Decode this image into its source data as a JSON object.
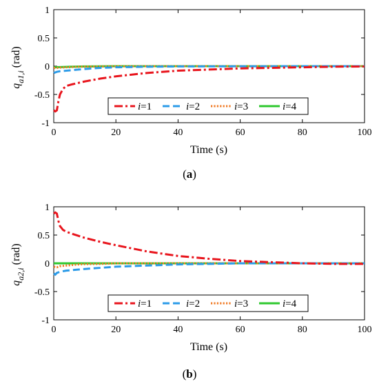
{
  "chart_data": [
    {
      "type": "line",
      "panel_label": "a",
      "ylabel_main": "q",
      "ylabel_sub": "a1,i",
      "ylabel_unit": "(rad)",
      "xlabel": "Time (s)",
      "xlim": [
        0,
        100
      ],
      "ylim": [
        -1,
        1
      ],
      "xticks": [
        "0",
        "20",
        "40",
        "60",
        "80",
        "100"
      ],
      "yticks": [
        "1",
        "0.5",
        "0",
        "-0.5",
        "-1"
      ],
      "legend_position": "bottom-center",
      "legend": [
        {
          "label": "i=1",
          "color": "#e8141c",
          "style": "dashdot"
        },
        {
          "label": "i=2",
          "color": "#2b9be8",
          "style": "dashed"
        },
        {
          "label": "i=3",
          "color": "#f07a24",
          "style": "dotted"
        },
        {
          "label": "i=4",
          "color": "#2ec82e",
          "style": "solid"
        }
      ],
      "series": [
        {
          "x": [
            0,
            0.5,
            1,
            1.5,
            2,
            3,
            4,
            6,
            10,
            15,
            20,
            30,
            40,
            50,
            60,
            70,
            80,
            90,
            100
          ],
          "y": [
            -0.78,
            -0.8,
            -0.78,
            -0.62,
            -0.5,
            -0.4,
            -0.35,
            -0.32,
            -0.27,
            -0.22,
            -0.18,
            -0.12,
            -0.08,
            -0.06,
            -0.04,
            -0.03,
            -0.02,
            -0.01,
            -0.005
          ]
        },
        {
          "x": [
            0,
            1,
            2,
            4,
            6,
            8,
            10,
            15,
            20,
            30,
            40,
            60,
            80,
            100
          ],
          "y": [
            -0.12,
            -0.1,
            -0.09,
            -0.08,
            -0.07,
            -0.06,
            -0.05,
            -0.03,
            -0.02,
            -0.01,
            -0.005,
            -0.002,
            0,
            0
          ]
        },
        {
          "x": [
            0,
            1,
            2,
            4,
            8,
            15,
            30,
            60,
            100
          ],
          "y": [
            -0.03,
            -0.03,
            -0.025,
            -0.02,
            -0.01,
            -0.005,
            0,
            0,
            0
          ]
        },
        {
          "x": [
            0,
            5,
            10,
            20,
            40,
            60,
            80,
            100
          ],
          "y": [
            -0.02,
            -0.01,
            -0.005,
            0,
            0,
            0,
            0,
            0
          ]
        }
      ]
    },
    {
      "type": "line",
      "panel_label": "b",
      "ylabel_main": "q",
      "ylabel_sub": "a2,i",
      "ylabel_unit": "(rad)",
      "xlabel": "Time (s)",
      "xlim": [
        0,
        100
      ],
      "ylim": [
        -1,
        1
      ],
      "xticks": [
        "0",
        "20",
        "40",
        "60",
        "80",
        "100"
      ],
      "yticks": [
        "1",
        "0.5",
        "0",
        "-0.5",
        "-1"
      ],
      "legend_position": "bottom-center",
      "legend": [
        {
          "label": "i=1",
          "color": "#e8141c",
          "style": "dashdot"
        },
        {
          "label": "i=2",
          "color": "#2b9be8",
          "style": "dashed"
        },
        {
          "label": "i=3",
          "color": "#f07a24",
          "style": "dotted"
        },
        {
          "label": "i=4",
          "color": "#2ec82e",
          "style": "solid"
        }
      ],
      "series": [
        {
          "x": [
            0,
            0.5,
            1,
            1.5,
            2,
            3,
            4,
            6,
            10,
            15,
            20,
            30,
            40,
            50,
            60,
            70,
            80,
            90,
            100
          ],
          "y": [
            0.88,
            0.9,
            0.88,
            0.75,
            0.66,
            0.59,
            0.56,
            0.52,
            0.45,
            0.38,
            0.32,
            0.21,
            0.13,
            0.08,
            0.04,
            0.02,
            0,
            -0.01,
            -0.01
          ]
        },
        {
          "x": [
            0,
            0.5,
            1,
            2,
            4,
            6,
            10,
            15,
            20,
            30,
            40,
            50,
            60,
            80,
            100
          ],
          "y": [
            -0.18,
            -0.2,
            -0.17,
            -0.15,
            -0.13,
            -0.12,
            -0.1,
            -0.08,
            -0.06,
            -0.04,
            -0.02,
            -0.01,
            0,
            0,
            0
          ]
        },
        {
          "x": [
            0,
            1,
            2,
            4,
            6,
            8,
            10,
            15,
            20,
            40,
            60,
            100
          ],
          "y": [
            -0.06,
            -0.07,
            -0.05,
            -0.04,
            -0.03,
            -0.02,
            -0.015,
            -0.01,
            0,
            0,
            0,
            0
          ]
        },
        {
          "x": [
            0,
            5,
            10,
            20,
            40,
            60,
            80,
            100
          ],
          "y": [
            0,
            0,
            0,
            0,
            0,
            0,
            0,
            0
          ]
        }
      ]
    }
  ]
}
